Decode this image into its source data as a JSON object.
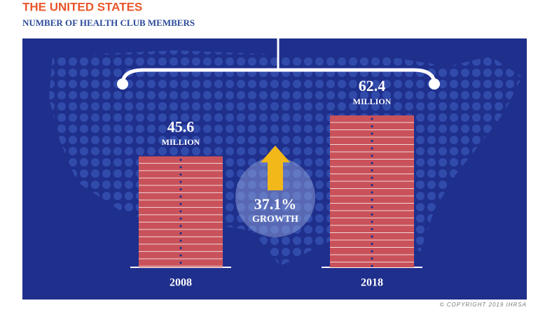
{
  "chart_data": {
    "type": "bar",
    "title": "THE UNITED STATES",
    "subtitle": "NUMBER OF HEALTH CLUB MEMBERS",
    "categories": [
      "2008",
      "2018"
    ],
    "values": [
      45.6,
      62.4
    ],
    "unit_label": "MILLION",
    "color": "#c9525a",
    "growth_label": "37.1%",
    "growth_text": "GROWTH",
    "copyright": "© COPYRIGHT 2019 IHRSA"
  }
}
